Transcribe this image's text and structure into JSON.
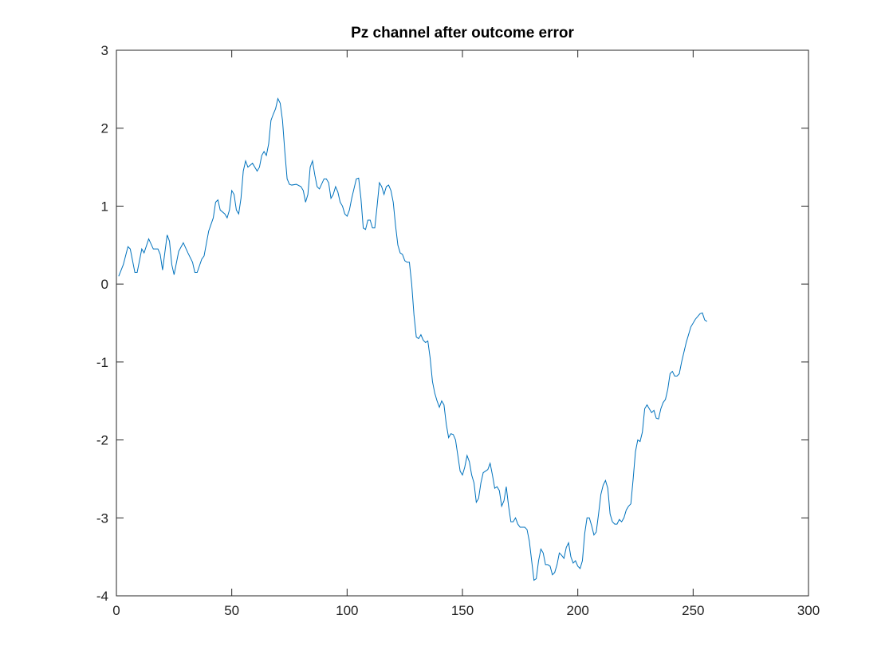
{
  "chart_data": {
    "type": "line",
    "title": "Pz channel after outcome error",
    "x": [
      1,
      3,
      5,
      6,
      8,
      9,
      11,
      12,
      14,
      16,
      18,
      19,
      20,
      22,
      23,
      24,
      25,
      27,
      29,
      31,
      33,
      34,
      35,
      37,
      38,
      40,
      42,
      43,
      44,
      45,
      47,
      48,
      49,
      50,
      51,
      52,
      53,
      54,
      55,
      56,
      57,
      59,
      61,
      62,
      63,
      64,
      65,
      66,
      67,
      68,
      69,
      70,
      71,
      72,
      73,
      74,
      75,
      76,
      78,
      80,
      81,
      82,
      83,
      84,
      85,
      86,
      87,
      88,
      90,
      91,
      92,
      93,
      94,
      95,
      96,
      97,
      98,
      99,
      100,
      101,
      102,
      104,
      105,
      106,
      107,
      108,
      109,
      110,
      111,
      112,
      113,
      114,
      115,
      116,
      117,
      118,
      119,
      120,
      121,
      122,
      123,
      124,
      125,
      126,
      127,
      128,
      129,
      130,
      131,
      132,
      133,
      134,
      135,
      136,
      137,
      138,
      139,
      140,
      141,
      142,
      143,
      144,
      145,
      146,
      147,
      148,
      149,
      150,
      151,
      152,
      153,
      154,
      155,
      156,
      157,
      158,
      159,
      160,
      161,
      162,
      163,
      164,
      165,
      166,
      167,
      168,
      169,
      170,
      171,
      172,
      173,
      174,
      175,
      176,
      177,
      178,
      179,
      180,
      181,
      182,
      183,
      184,
      185,
      186,
      187,
      188,
      189,
      190,
      191,
      192,
      193,
      194,
      195,
      196,
      197,
      198,
      199,
      200,
      201,
      202,
      203,
      204,
      205,
      206,
      207,
      208,
      209,
      210,
      211,
      212,
      213,
      214,
      215,
      216,
      217,
      218,
      219,
      220,
      221,
      222,
      223,
      224,
      225,
      226,
      227,
      228,
      229,
      230,
      231,
      232,
      233,
      234,
      235,
      236,
      237,
      238,
      239,
      240,
      241,
      242,
      243,
      244,
      245,
      247,
      249,
      251,
      253,
      254,
      255,
      256
    ],
    "series": [
      {
        "color": "#0072bd",
        "values": [
          0.1,
          0.25,
          0.48,
          0.45,
          0.15,
          0.15,
          0.45,
          0.4,
          0.58,
          0.45,
          0.45,
          0.38,
          0.18,
          0.63,
          0.55,
          0.25,
          0.12,
          0.42,
          0.53,
          0.4,
          0.28,
          0.15,
          0.15,
          0.32,
          0.36,
          0.68,
          0.85,
          1.05,
          1.08,
          0.95,
          0.9,
          0.85,
          0.95,
          1.2,
          1.15,
          0.95,
          0.9,
          1.1,
          1.45,
          1.58,
          1.5,
          1.55,
          1.45,
          1.5,
          1.65,
          1.7,
          1.65,
          1.8,
          2.1,
          2.18,
          2.25,
          2.38,
          2.32,
          2.1,
          1.7,
          1.35,
          1.28,
          1.27,
          1.28,
          1.25,
          1.2,
          1.05,
          1.15,
          1.5,
          1.58,
          1.4,
          1.25,
          1.22,
          1.35,
          1.35,
          1.3,
          1.1,
          1.15,
          1.25,
          1.18,
          1.05,
          1.0,
          0.9,
          0.87,
          0.95,
          1.1,
          1.35,
          1.36,
          1.1,
          0.72,
          0.7,
          0.82,
          0.82,
          0.72,
          0.72,
          1.0,
          1.3,
          1.25,
          1.15,
          1.25,
          1.27,
          1.2,
          1.05,
          0.75,
          0.5,
          0.4,
          0.38,
          0.3,
          0.28,
          0.28,
          0.0,
          -0.4,
          -0.68,
          -0.7,
          -0.65,
          -0.72,
          -0.75,
          -0.73,
          -0.95,
          -1.25,
          -1.4,
          -1.5,
          -1.58,
          -1.5,
          -1.55,
          -1.8,
          -1.97,
          -1.92,
          -1.93,
          -2.0,
          -2.2,
          -2.4,
          -2.45,
          -2.35,
          -2.2,
          -2.28,
          -2.45,
          -2.55,
          -2.8,
          -2.75,
          -2.55,
          -2.42,
          -2.4,
          -2.38,
          -2.3,
          -2.45,
          -2.62,
          -2.6,
          -2.65,
          -2.85,
          -2.78,
          -2.6,
          -2.85,
          -3.05,
          -3.05,
          -3.0,
          -3.08,
          -3.12,
          -3.12,
          -3.12,
          -3.15,
          -3.3,
          -3.55,
          -3.8,
          -3.78,
          -3.55,
          -3.4,
          -3.45,
          -3.6,
          -3.6,
          -3.62,
          -3.73,
          -3.7,
          -3.6,
          -3.45,
          -3.48,
          -3.52,
          -3.38,
          -3.32,
          -3.5,
          -3.58,
          -3.55,
          -3.62,
          -3.65,
          -3.55,
          -3.2,
          -3.0,
          -3.0,
          -3.1,
          -3.22,
          -3.18,
          -2.95,
          -2.7,
          -2.58,
          -2.52,
          -2.62,
          -2.95,
          -3.05,
          -3.08,
          -3.08,
          -3.02,
          -3.05,
          -3.0,
          -2.9,
          -2.85,
          -2.82,
          -2.5,
          -2.15,
          -2.0,
          -2.02,
          -1.9,
          -1.6,
          -1.55,
          -1.6,
          -1.65,
          -1.62,
          -1.72,
          -1.73,
          -1.6,
          -1.52,
          -1.48,
          -1.35,
          -1.15,
          -1.12,
          -1.18,
          -1.18,
          -1.15,
          -1.0,
          -0.75,
          -0.55,
          -0.45,
          -0.38,
          -0.37,
          -0.46,
          -0.48
        ]
      }
    ],
    "xlim": [
      0,
      300
    ],
    "xticks": [
      0,
      50,
      100,
      150,
      200,
      250,
      300
    ],
    "ylim": [
      -4,
      3
    ],
    "yticks": [
      -4,
      -3,
      -2,
      -1,
      0,
      1,
      2,
      3
    ]
  }
}
